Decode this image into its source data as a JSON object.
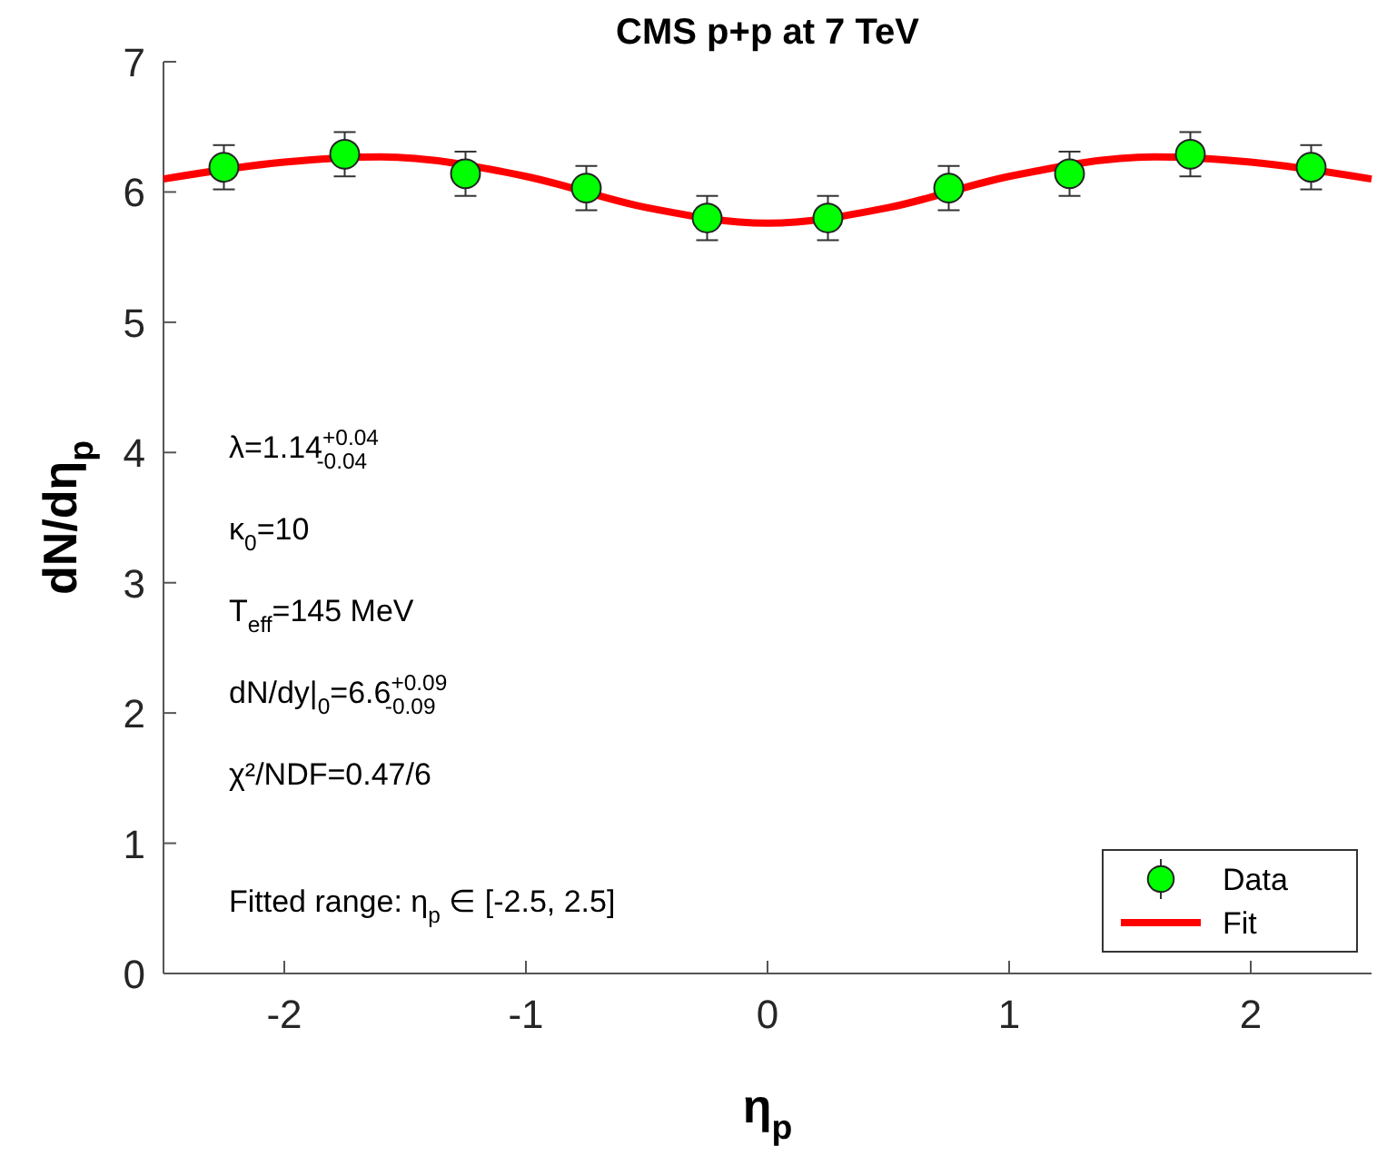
{
  "chart_data": {
    "type": "scatter",
    "title": "CMS p+p at 7 TeV",
    "xlabel": "η$_{p}$",
    "ylabel": "dN/dη$_{p}$",
    "xlim": [
      -2.5,
      2.5
    ],
    "xticks": [
      -2,
      -1,
      0,
      1,
      2
    ],
    "ylim": [
      0,
      7
    ],
    "yticks": [
      0,
      1,
      2,
      3,
      4,
      5,
      6,
      7
    ],
    "grid": false,
    "legend": "bottom right",
    "series": [
      {
        "name": "Data",
        "color": "#00ff00",
        "marker": "circle",
        "x": [
          -2.25,
          -1.75,
          -1.25,
          -0.75,
          -0.25,
          0.25,
          0.75,
          1.25,
          1.75,
          2.25
        ],
        "values": [
          6.19,
          6.29,
          6.14,
          6.03,
          5.8,
          5.8,
          6.03,
          6.14,
          6.29,
          6.19
        ],
        "errors": [
          0.17,
          0.17,
          0.17,
          0.17,
          0.17,
          0.17,
          0.17,
          0.17,
          0.17,
          0.17
        ]
      },
      {
        "name": "Fit",
        "type": "line",
        "color": "#ff0000",
        "marker": "none",
        "line_style": "solid",
        "x": [
          -2.5,
          -2,
          -1.6,
          -1,
          -0.5,
          0,
          0.5,
          1,
          1.6,
          2,
          2.5
        ],
        "values": [
          6.1,
          6.23,
          6.27,
          6.12,
          5.88,
          5.76,
          5.88,
          6.12,
          6.27,
          6.23,
          6.1
        ]
      }
    ],
    "annotations": [
      "λ=1.14$^{+0.04}$$_{-0.04}$",
      "κ$_{0}$=10",
      "T$_{eff}$=145 MeV",
      "dN/dy|$_{0}$=6.6$^{+0.09}$$_{-0.09}$",
      "χ²/NDF=0.47/6",
      "Fitted range: η$_{p}$ ∈ [-2.5, 2.5]"
    ]
  }
}
